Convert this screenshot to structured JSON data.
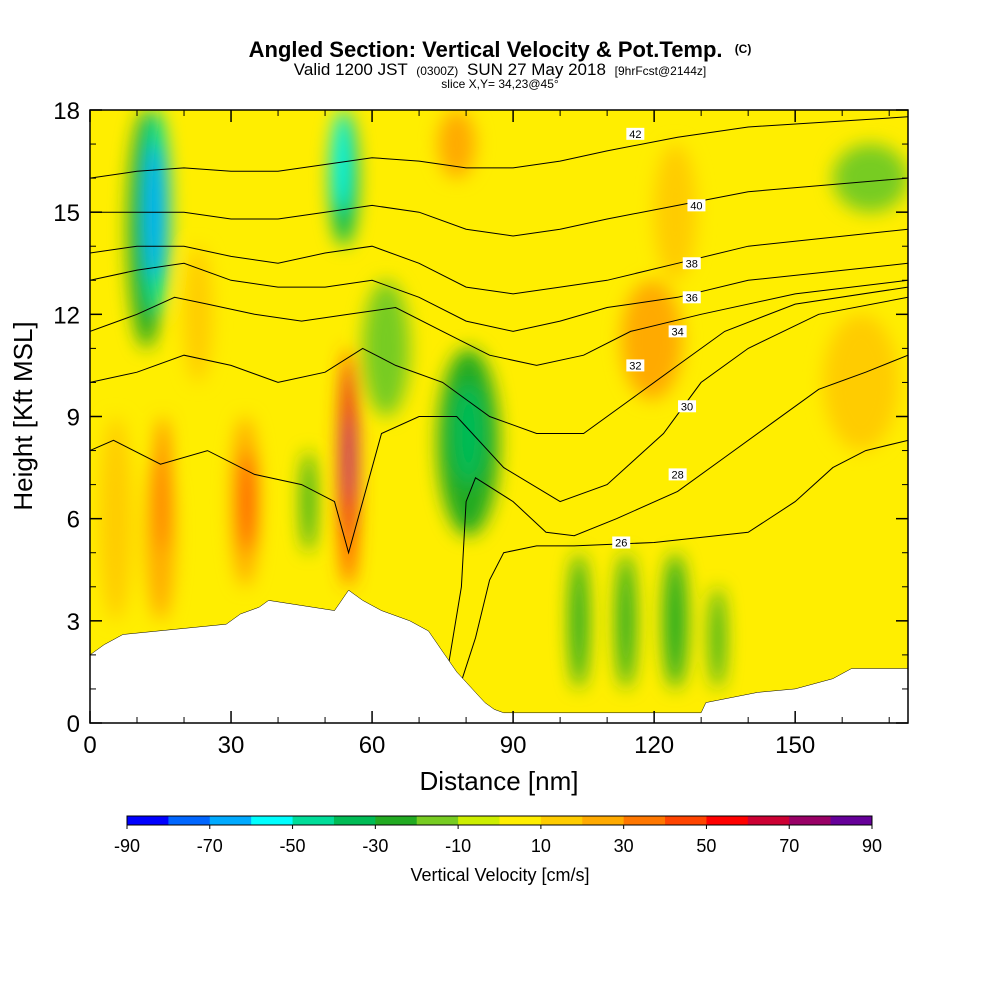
{
  "chart_data": {
    "type": "heatmap",
    "title": "Angled Section: Vertical Velocity & Pot.Temp.",
    "title_suffix": "(C)",
    "subtitle_parts": [
      "Valid 1200 JST",
      "(0300Z)",
      "SUN 27 May 2018",
      "[9hrFcst@2144z]"
    ],
    "slice_label": "slice X,Y= 34,23@45°",
    "xlabel": "Distance [nm]",
    "ylabel": "Height [Kft MSL]",
    "xlim": [
      0,
      174
    ],
    "ylim": [
      0,
      18
    ],
    "x_ticks": [
      0,
      30,
      60,
      90,
      120,
      150
    ],
    "x_tick_labels": [
      "0",
      "30",
      "60",
      "90",
      "120",
      "150"
    ],
    "y_ticks": [
      0,
      3,
      6,
      9,
      12,
      15,
      18
    ],
    "y_tick_labels": [
      "0",
      "3",
      "6",
      "9",
      "12",
      "15",
      "18"
    ],
    "colorbar": {
      "label": "Vertical Velocity [cm/s]",
      "tick_labels": [
        "-90",
        "-70",
        "-50",
        "-30",
        "-10",
        "10",
        "30",
        "50",
        "70",
        "90"
      ],
      "boundaries": [
        -90,
        -80,
        -70,
        -60,
        -50,
        -40,
        -30,
        -20,
        -10,
        0,
        10,
        20,
        30,
        40,
        50,
        60,
        70,
        80,
        90
      ],
      "colors": [
        "#0000ff",
        "#0066ff",
        "#00aaff",
        "#00ffff",
        "#00dd99",
        "#00bb55",
        "#22aa22",
        "#77cc22",
        "#ccee00",
        "#ffee00",
        "#ffcc00",
        "#ffaa00",
        "#ff7700",
        "#ff4400",
        "#ff0000",
        "#cc0033",
        "#990066",
        "#660099"
      ]
    },
    "cells": [
      {
        "x": [
          2,
          9
        ],
        "z": [
          3,
          9
        ],
        "w": 18
      },
      {
        "x": [
          12,
          18
        ],
        "z": [
          3,
          8
        ],
        "w": 20
      },
      {
        "x": [
          14,
          17
        ],
        "z": [
          5,
          9
        ],
        "w": 35
      },
      {
        "x": [
          30,
          36
        ],
        "z": [
          4,
          9
        ],
        "w": 28
      },
      {
        "x": [
          32,
          35
        ],
        "z": [
          5,
          8
        ],
        "w": 45
      },
      {
        "x": [
          45,
          48
        ],
        "z": [
          5,
          8
        ],
        "w": -22
      },
      {
        "x": [
          20,
          26
        ],
        "z": [
          10,
          14
        ],
        "w": 15
      },
      {
        "x": [
          8,
          16
        ],
        "z": [
          11,
          18
        ],
        "w": -25
      },
      {
        "x": [
          11,
          17
        ],
        "z": [
          12,
          18
        ],
        "w": -45
      },
      {
        "x": [
          12,
          16
        ],
        "z": [
          13,
          17
        ],
        "w": -65
      },
      {
        "x": [
          51,
          57
        ],
        "z": [
          14,
          18
        ],
        "w": -35
      },
      {
        "x": [
          52,
          55
        ],
        "z": [
          15,
          18
        ],
        "w": -55
      },
      {
        "x": [
          53,
          57
        ],
        "z": [
          4,
          11
        ],
        "w": 40
      },
      {
        "x": [
          54,
          56
        ],
        "z": [
          5.5,
          10.5
        ],
        "w": 65
      },
      {
        "x": [
          54.5,
          55.8
        ],
        "z": [
          6.5,
          9
        ],
        "w": 88
      },
      {
        "x": [
          58,
          68
        ],
        "z": [
          9,
          13
        ],
        "w": -12
      },
      {
        "x": [
          74,
          87
        ],
        "z": [
          5.5,
          11
        ],
        "w": -22
      },
      {
        "x": [
          77,
          84
        ],
        "z": [
          7,
          10
        ],
        "w": -32
      },
      {
        "x": [
          74,
          82
        ],
        "z": [
          16,
          18
        ],
        "w": 25
      },
      {
        "x": [
          102,
          106
        ],
        "z": [
          1,
          5
        ],
        "w": -25
      },
      {
        "x": [
          112,
          116
        ],
        "z": [
          1,
          5
        ],
        "w": -28
      },
      {
        "x": [
          122,
          127
        ],
        "z": [
          1,
          5
        ],
        "w": -22
      },
      {
        "x": [
          132,
          135
        ],
        "z": [
          1,
          4
        ],
        "w": -25
      },
      {
        "x": [
          113,
          126
        ],
        "z": [
          9.5,
          13
        ],
        "w": 25
      },
      {
        "x": [
          120,
          129
        ],
        "z": [
          13,
          17
        ],
        "w": 15
      },
      {
        "x": [
          156,
          172
        ],
        "z": [
          8,
          12
        ],
        "w": 15
      },
      {
        "x": [
          158,
          174
        ],
        "z": [
          15,
          17
        ],
        "w": -12
      }
    ],
    "terrain": [
      [
        0,
        2.0
      ],
      [
        3,
        2.3
      ],
      [
        7,
        2.6
      ],
      [
        29,
        2.9
      ],
      [
        32,
        3.2
      ],
      [
        36,
        3.4
      ],
      [
        38,
        3.6
      ],
      [
        52,
        3.3
      ],
      [
        55,
        3.9
      ],
      [
        58,
        3.6
      ],
      [
        62,
        3.3
      ],
      [
        68,
        3.0
      ],
      [
        72,
        2.7
      ],
      [
        74,
        2.3
      ],
      [
        76,
        1.9
      ],
      [
        78,
        1.5
      ],
      [
        80,
        1.2
      ],
      [
        82,
        0.9
      ],
      [
        84,
        0.6
      ],
      [
        86,
        0.4
      ],
      [
        88,
        0.3
      ],
      [
        130,
        0.3
      ],
      [
        131,
        0.6
      ],
      [
        142,
        0.9
      ],
      [
        150,
        1.0
      ],
      [
        158,
        1.3
      ],
      [
        162,
        1.6
      ],
      [
        174,
        1.6
      ]
    ],
    "theta_contours": [
      {
        "level": 26,
        "points": [
          [
            78,
            0.8
          ],
          [
            82,
            2.5
          ],
          [
            85,
            4.2
          ],
          [
            88,
            5.0
          ],
          [
            95,
            5.2
          ],
          [
            103,
            5.2
          ],
          [
            120,
            5.3
          ],
          [
            140,
            5.6
          ],
          [
            150,
            6.5
          ],
          [
            158,
            7.5
          ],
          [
            165,
            8.0
          ],
          [
            174,
            8.3
          ]
        ],
        "label_at": [
          113,
          5.3
        ]
      },
      {
        "level": 28,
        "points": [
          [
            76,
            1.5
          ],
          [
            79,
            4.0
          ],
          [
            80,
            6.5
          ],
          [
            82,
            7.2
          ],
          [
            90,
            6.5
          ],
          [
            97,
            5.6
          ],
          [
            103,
            5.5
          ],
          [
            112,
            6.0
          ],
          [
            125,
            6.8
          ],
          [
            135,
            7.8
          ],
          [
            145,
            8.8
          ],
          [
            155,
            9.8
          ],
          [
            165,
            10.3
          ],
          [
            174,
            10.8
          ]
        ],
        "label_at": [
          125,
          7.3
        ]
      },
      {
        "level": 30,
        "points": [
          [
            0,
            8.0
          ],
          [
            5,
            8.3
          ],
          [
            15,
            7.6
          ],
          [
            25,
            8.0
          ],
          [
            35,
            7.3
          ],
          [
            45,
            7.0
          ],
          [
            52,
            6.5
          ],
          [
            55,
            5.0
          ],
          [
            58,
            6.5
          ],
          [
            62,
            8.5
          ],
          [
            70,
            9.0
          ],
          [
            78,
            9.0
          ],
          [
            88,
            7.5
          ],
          [
            100,
            6.5
          ],
          [
            110,
            7.0
          ],
          [
            122,
            8.5
          ],
          [
            130,
            10.0
          ],
          [
            140,
            11.0
          ],
          [
            155,
            12.0
          ],
          [
            174,
            12.5
          ]
        ],
        "label_at": [
          127,
          9.3
        ]
      },
      {
        "level": 32,
        "points": [
          [
            0,
            10.0
          ],
          [
            10,
            10.3
          ],
          [
            20,
            10.8
          ],
          [
            30,
            10.5
          ],
          [
            40,
            10.0
          ],
          [
            50,
            10.3
          ],
          [
            58,
            11.0
          ],
          [
            65,
            10.5
          ],
          [
            75,
            10.0
          ],
          [
            85,
            9.0
          ],
          [
            95,
            8.5
          ],
          [
            105,
            8.5
          ],
          [
            115,
            9.5
          ],
          [
            125,
            10.5
          ],
          [
            135,
            11.5
          ],
          [
            150,
            12.3
          ],
          [
            174,
            12.8
          ]
        ],
        "label_at": [
          116,
          10.5
        ]
      },
      {
        "level": 34,
        "points": [
          [
            0,
            11.5
          ],
          [
            10,
            12.0
          ],
          [
            18,
            12.5
          ],
          [
            25,
            12.3
          ],
          [
            35,
            12.0
          ],
          [
            45,
            11.8
          ],
          [
            55,
            12.0
          ],
          [
            65,
            12.2
          ],
          [
            75,
            11.5
          ],
          [
            85,
            10.8
          ],
          [
            95,
            10.5
          ],
          [
            105,
            10.8
          ],
          [
            115,
            11.5
          ],
          [
            130,
            12.0
          ],
          [
            150,
            12.6
          ],
          [
            174,
            13.0
          ]
        ],
        "label_at": [
          125,
          11.5
        ]
      },
      {
        "level": 36,
        "points": [
          [
            0,
            13.0
          ],
          [
            10,
            13.3
          ],
          [
            20,
            13.5
          ],
          [
            30,
            13.0
          ],
          [
            40,
            12.8
          ],
          [
            50,
            12.8
          ],
          [
            60,
            13.0
          ],
          [
            70,
            12.5
          ],
          [
            80,
            11.8
          ],
          [
            90,
            11.5
          ],
          [
            100,
            11.8
          ],
          [
            110,
            12.2
          ],
          [
            125,
            12.5
          ],
          [
            140,
            13.0
          ],
          [
            174,
            13.5
          ]
        ],
        "label_at": [
          128,
          12.5
        ]
      },
      {
        "level": 38,
        "points": [
          [
            0,
            13.8
          ],
          [
            10,
            14.0
          ],
          [
            20,
            14.0
          ],
          [
            30,
            13.7
          ],
          [
            40,
            13.5
          ],
          [
            50,
            13.8
          ],
          [
            60,
            14.0
          ],
          [
            70,
            13.5
          ],
          [
            80,
            12.8
          ],
          [
            90,
            12.6
          ],
          [
            100,
            12.8
          ],
          [
            110,
            13.0
          ],
          [
            125,
            13.5
          ],
          [
            140,
            14.0
          ],
          [
            174,
            14.5
          ]
        ],
        "label_at": [
          128,
          13.5
        ]
      },
      {
        "level": 40,
        "points": [
          [
            0,
            15.0
          ],
          [
            10,
            15.0
          ],
          [
            20,
            15.0
          ],
          [
            30,
            14.8
          ],
          [
            40,
            14.8
          ],
          [
            50,
            15.0
          ],
          [
            60,
            15.2
          ],
          [
            70,
            15.0
          ],
          [
            80,
            14.5
          ],
          [
            90,
            14.3
          ],
          [
            100,
            14.5
          ],
          [
            110,
            14.8
          ],
          [
            125,
            15.2
          ],
          [
            140,
            15.6
          ],
          [
            174,
            16.0
          ]
        ],
        "label_at": [
          129,
          15.2
        ]
      },
      {
        "level": 42,
        "points": [
          [
            0,
            16.0
          ],
          [
            10,
            16.2
          ],
          [
            20,
            16.3
          ],
          [
            30,
            16.2
          ],
          [
            40,
            16.2
          ],
          [
            50,
            16.4
          ],
          [
            60,
            16.6
          ],
          [
            70,
            16.5
          ],
          [
            80,
            16.3
          ],
          [
            90,
            16.3
          ],
          [
            100,
            16.5
          ],
          [
            110,
            16.8
          ],
          [
            125,
            17.2
          ],
          [
            140,
            17.5
          ],
          [
            174,
            17.8
          ]
        ],
        "label_at": [
          116,
          17.3
        ]
      }
    ]
  }
}
